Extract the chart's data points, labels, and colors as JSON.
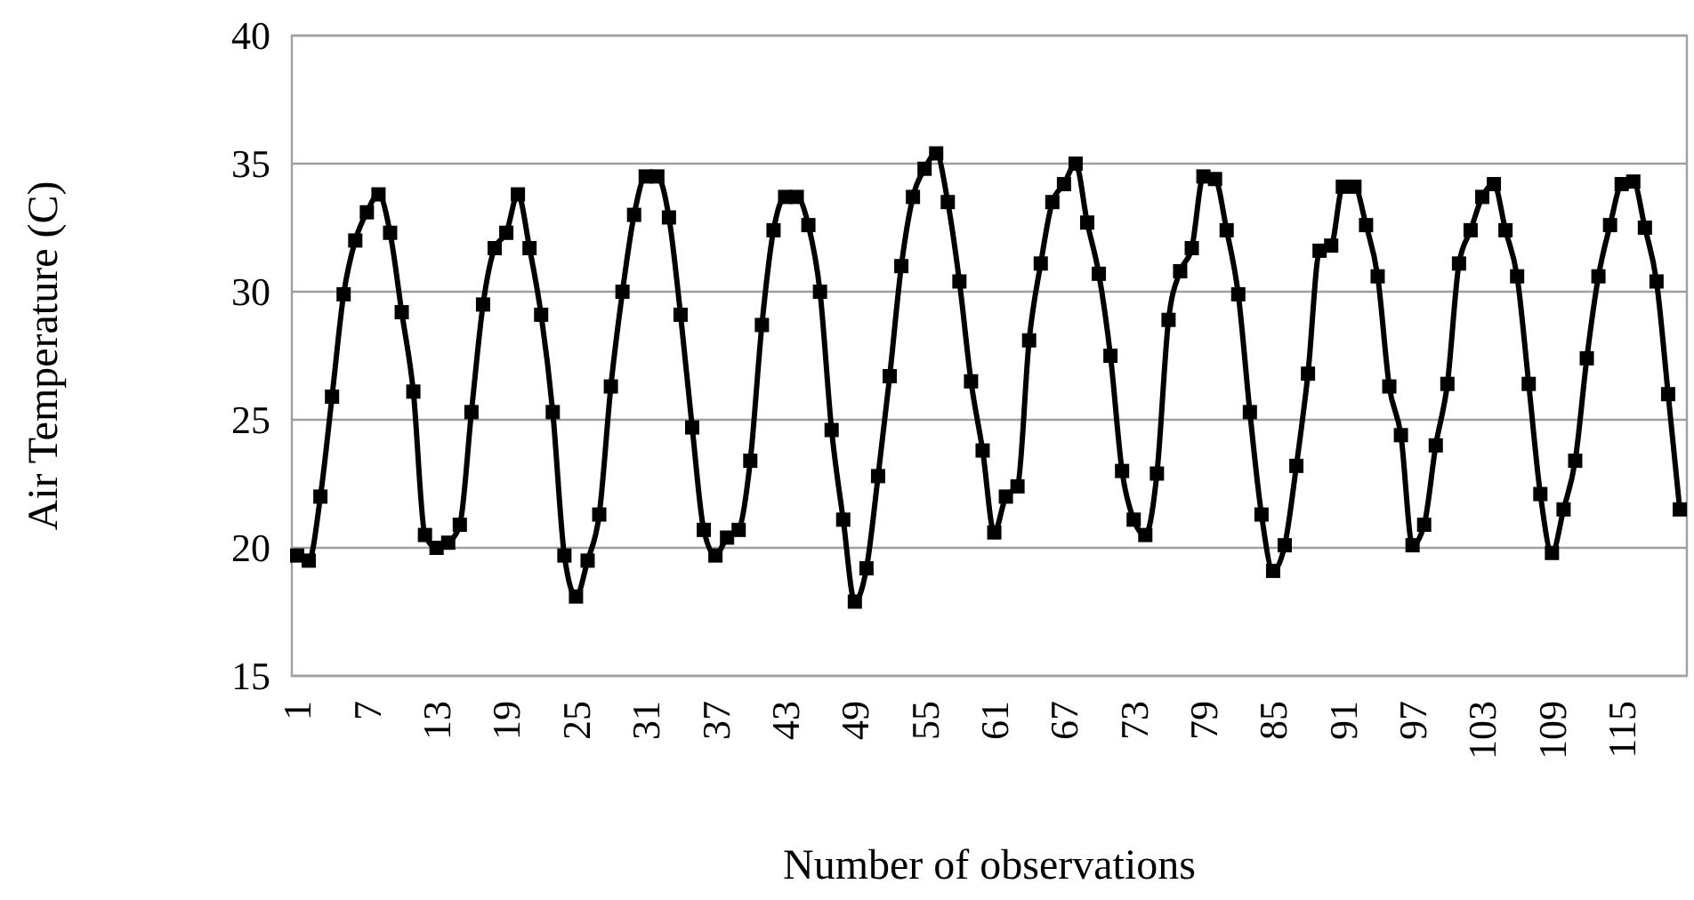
{
  "chart_data": {
    "type": "line",
    "xlabel": "Number of observations",
    "ylabel": "Air Temperature (C)",
    "categories": [
      "1",
      null,
      null,
      null,
      null,
      null,
      "7",
      null,
      null,
      null,
      null,
      null,
      "13",
      null,
      null,
      null,
      null,
      null,
      "19",
      null,
      null,
      null,
      null,
      null,
      "25",
      null,
      null,
      null,
      null,
      null,
      "31",
      null,
      null,
      null,
      null,
      null,
      "37",
      null,
      null,
      null,
      null,
      null,
      "43",
      null,
      null,
      null,
      null,
      null,
      "49",
      null,
      null,
      null,
      null,
      null,
      "55",
      null,
      null,
      null,
      null,
      null,
      "61",
      null,
      null,
      null,
      null,
      null,
      "67",
      null,
      null,
      null,
      null,
      null,
      "73",
      null,
      null,
      null,
      null,
      null,
      "79",
      null,
      null,
      null,
      null,
      null,
      "85",
      null,
      null,
      null,
      null,
      null,
      "91",
      null,
      null,
      null,
      null,
      null,
      "97",
      null,
      null,
      null,
      null,
      null,
      "103",
      null,
      null,
      null,
      null,
      null,
      "109",
      null,
      null,
      null,
      null,
      null,
      "115",
      null,
      null,
      null,
      null,
      null
    ],
    "series": [
      {
        "color": "#000000",
        "values": [
          19.7,
          19.5,
          22.0,
          25.9,
          29.9,
          32.0,
          33.1,
          33.8,
          32.3,
          29.2,
          26.1,
          20.5,
          20.0,
          20.2,
          20.9,
          25.3,
          29.5,
          31.7,
          32.3,
          33.8,
          31.7,
          29.1,
          25.3,
          19.7,
          18.1,
          19.5,
          21.3,
          26.3,
          30.0,
          33.0,
          34.5,
          34.5,
          32.9,
          29.1,
          24.7,
          20.7,
          19.7,
          20.4,
          20.7,
          23.4,
          28.7,
          32.4,
          33.7,
          33.7,
          32.6,
          30.0,
          24.6,
          21.1,
          17.9,
          19.2,
          22.8,
          26.7,
          31.0,
          33.7,
          34.8,
          35.4,
          33.5,
          30.4,
          26.5,
          23.8,
          20.6,
          22.0,
          22.4,
          28.1,
          31.1,
          33.5,
          34.2,
          35.0,
          32.7,
          30.7,
          27.5,
          23.0,
          21.1,
          20.5,
          22.9,
          28.9,
          30.8,
          31.7,
          34.5,
          34.4,
          32.4,
          29.9,
          25.3,
          21.3,
          19.1,
          20.1,
          23.2,
          26.8,
          31.6,
          31.8,
          34.1,
          34.1,
          32.6,
          30.6,
          26.3,
          24.4,
          20.1,
          20.9,
          24.0,
          26.4,
          31.1,
          32.4,
          33.7,
          34.2,
          32.4,
          30.6,
          26.4,
          22.1,
          19.8,
          21.5,
          23.4,
          27.4,
          30.6,
          32.6,
          34.2,
          34.3,
          32.5,
          30.4,
          26.0,
          21.5
        ]
      }
    ],
    "ylim": [
      15,
      40
    ],
    "yticks": [
      15,
      20,
      25,
      30,
      35,
      40
    ],
    "grid": "y",
    "marker": "square"
  }
}
